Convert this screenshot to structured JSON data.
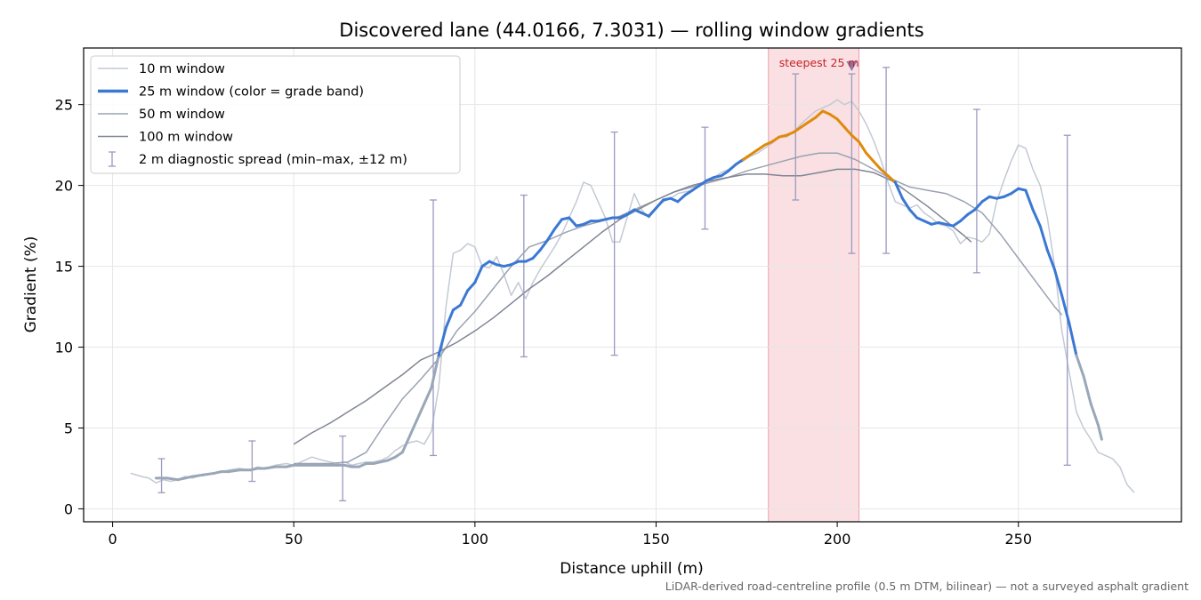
{
  "chart_data": {
    "type": "line",
    "title": "Discovered lane (44.0166, 7.3031) — rolling window gradients",
    "xlabel": "Distance uphill (m)",
    "ylabel": "Gradient (%)",
    "xlim": [
      -8,
      295
    ],
    "ylim": [
      -0.8,
      28.5
    ],
    "xticks": [
      0,
      50,
      100,
      150,
      200,
      250
    ],
    "yticks": [
      0,
      5,
      10,
      15,
      20,
      25
    ],
    "grid": true,
    "legend_position": "top-left",
    "footnote": "LiDAR-derived road-centreline profile (0.5 m DTM, bilinear) — not a surveyed asphalt gradient",
    "highlight": {
      "x0": 181,
      "x1": 206,
      "color": "#f5c6cb",
      "label": "steepest 25 m",
      "marker_x": 204,
      "marker_y": 27.4
    },
    "grade_band_colors": {
      "low": "#9aa7b8",
      "mid": "#3a78d4",
      "high": "#e08a0c"
    },
    "series": [
      {
        "name": "10 m window",
        "color": "#c3c9d4",
        "width": 1.5,
        "x": [
          5,
          8,
          10,
          12,
          14,
          16,
          18,
          20,
          22,
          25,
          28,
          30,
          32,
          35,
          38,
          40,
          42,
          45,
          48,
          50,
          52,
          55,
          58,
          60,
          62,
          64,
          66,
          68,
          70,
          72,
          74,
          76,
          78,
          80,
          82,
          84,
          86,
          88,
          90,
          92,
          94,
          96,
          98,
          100,
          102,
          104,
          106,
          108,
          110,
          112,
          114,
          116,
          118,
          120,
          122,
          124,
          126,
          128,
          130,
          132,
          134,
          136,
          138,
          140,
          142,
          144,
          146,
          148,
          150,
          152,
          154,
          156,
          158,
          160,
          162,
          164,
          166,
          168,
          170,
          172,
          174,
          176,
          178,
          180,
          182,
          184,
          186,
          188,
          190,
          192,
          194,
          196,
          198,
          200,
          202,
          204,
          206,
          208,
          210,
          212,
          214,
          216,
          218,
          220,
          222,
          224,
          226,
          228,
          230,
          232,
          234,
          236,
          238,
          240,
          242,
          244,
          246,
          248,
          250,
          252,
          254,
          256,
          258,
          260,
          262,
          264,
          266,
          268,
          270,
          272,
          274,
          276,
          278,
          280,
          282
        ],
        "y": [
          2.2,
          2.0,
          1.9,
          1.6,
          1.8,
          1.7,
          1.8,
          2.0,
          1.9,
          2.1,
          2.2,
          2.3,
          2.4,
          2.5,
          2.4,
          2.6,
          2.5,
          2.7,
          2.8,
          2.7,
          2.9,
          3.2,
          3.0,
          2.9,
          2.8,
          2.9,
          2.7,
          2.8,
          2.9,
          2.9,
          3.0,
          3.2,
          3.6,
          3.9,
          4.1,
          4.2,
          4.0,
          4.8,
          7.5,
          12.5,
          15.8,
          16.0,
          16.4,
          16.2,
          15.0,
          14.9,
          15.6,
          14.5,
          13.2,
          14.0,
          13.0,
          14.0,
          14.8,
          15.5,
          16.2,
          17.0,
          18.0,
          19.0,
          20.2,
          20.0,
          19.0,
          18.0,
          16.5,
          16.5,
          18.0,
          19.5,
          18.5,
          18.0,
          18.6,
          19.0,
          19.2,
          19.5,
          19.6,
          19.7,
          20.1,
          20.3,
          20.5,
          20.8,
          21.0,
          21.3,
          21.5,
          21.8,
          22.0,
          22.3,
          22.6,
          23.0,
          23.0,
          23.3,
          23.8,
          24.2,
          24.6,
          24.8,
          25.0,
          25.3,
          25.0,
          25.2,
          24.6,
          23.8,
          22.8,
          21.6,
          20.2,
          19.0,
          18.8,
          18.6,
          18.8,
          18.3,
          18.0,
          17.6,
          17.5,
          17.2,
          16.4,
          16.8,
          16.7,
          16.5,
          17.0,
          19.0,
          20.3,
          21.5,
          22.5,
          22.3,
          21.0,
          20.0,
          18.0,
          15.0,
          11.0,
          8.5,
          6.0,
          5.0,
          4.3,
          3.5,
          3.3,
          3.1,
          2.6,
          1.5,
          1.0
        ]
      },
      {
        "name": "25 m window (color = grade band)",
        "color": "#3a78d4",
        "width": 3,
        "x": [
          12,
          15,
          18,
          20,
          22,
          25,
          28,
          30,
          32,
          35,
          38,
          40,
          42,
          45,
          48,
          50,
          52,
          55,
          58,
          60,
          62,
          64,
          66,
          68,
          70,
          72,
          74,
          76,
          78,
          80,
          82,
          84,
          86,
          88,
          90,
          92,
          94,
          96,
          98,
          100,
          101,
          102,
          104,
          106,
          108,
          110,
          112,
          114,
          116,
          118,
          120,
          122,
          124,
          126,
          128,
          130,
          132,
          134,
          136,
          138,
          140,
          142,
          144,
          146,
          148,
          150,
          152,
          154,
          156,
          158,
          160,
          162,
          164,
          166,
          168,
          170,
          172,
          174,
          176,
          178,
          180,
          182,
          184,
          186,
          188,
          190,
          192,
          194,
          196,
          198,
          200,
          202,
          204,
          206,
          208,
          210,
          212,
          214,
          216,
          218,
          220,
          222,
          224,
          226,
          228,
          230,
          232,
          234,
          236,
          238,
          240,
          242,
          244,
          246,
          248,
          250,
          252,
          254,
          256,
          258,
          260,
          262,
          264,
          265,
          266,
          268,
          270,
          272,
          273
        ],
        "y": [
          1.9,
          1.9,
          1.8,
          1.9,
          2.0,
          2.1,
          2.2,
          2.3,
          2.3,
          2.4,
          2.4,
          2.5,
          2.5,
          2.6,
          2.6,
          2.7,
          2.7,
          2.7,
          2.7,
          2.7,
          2.7,
          2.7,
          2.6,
          2.6,
          2.8,
          2.8,
          2.9,
          3.0,
          3.2,
          3.5,
          4.5,
          5.5,
          6.5,
          7.5,
          9.5,
          11.2,
          12.3,
          12.6,
          13.5,
          14.0,
          14.5,
          15.0,
          15.3,
          15.1,
          15.0,
          15.1,
          15.3,
          15.3,
          15.5,
          16.0,
          16.6,
          17.3,
          17.9,
          18.0,
          17.5,
          17.6,
          17.8,
          17.8,
          17.9,
          18.0,
          18.0,
          18.2,
          18.5,
          18.3,
          18.1,
          18.6,
          19.1,
          19.2,
          19.0,
          19.4,
          19.7,
          20.0,
          20.3,
          20.5,
          20.6,
          20.9,
          21.3,
          21.6,
          21.9,
          22.2,
          22.5,
          22.7,
          23.0,
          23.1,
          23.3,
          23.6,
          23.9,
          24.2,
          24.6,
          24.4,
          24.1,
          23.6,
          23.1,
          22.7,
          22.0,
          21.5,
          21.0,
          20.6,
          20.2,
          19.2,
          18.5,
          18.0,
          17.8,
          17.6,
          17.7,
          17.6,
          17.5,
          17.8,
          18.2,
          18.5,
          19.0,
          19.3,
          19.2,
          19.3,
          19.5,
          19.8,
          19.7,
          18.5,
          17.5,
          16.0,
          14.8,
          13.2,
          11.5,
          10.5,
          9.5,
          8.2,
          6.5,
          5.2,
          4.3
        ]
      },
      {
        "name": "50 m window",
        "color": "#9aa2b2",
        "width": 1.5,
        "x": [
          50,
          55,
          60,
          65,
          70,
          75,
          80,
          85,
          90,
          95,
          100,
          105,
          110,
          115,
          120,
          125,
          130,
          135,
          140,
          145,
          150,
          155,
          160,
          165,
          170,
          175,
          180,
          185,
          190,
          195,
          200,
          205,
          210,
          215,
          220,
          225,
          230,
          235,
          240,
          245,
          250,
          255,
          260,
          262
        ],
        "y": [
          2.8,
          2.8,
          2.8,
          2.9,
          3.5,
          5.2,
          6.8,
          8.0,
          9.3,
          11.0,
          12.2,
          13.6,
          15.0,
          16.2,
          16.6,
          17.1,
          17.5,
          17.8,
          18.1,
          18.6,
          19.1,
          19.6,
          19.9,
          20.2,
          20.5,
          20.9,
          21.2,
          21.5,
          21.8,
          22.0,
          22.0,
          21.6,
          21.0,
          20.4,
          19.9,
          19.7,
          19.5,
          19.0,
          18.3,
          17.0,
          15.5,
          14.0,
          12.5,
          12.0
        ]
      },
      {
        "name": "100 m window",
        "color": "#7f8594",
        "width": 1.5,
        "x": [
          50,
          55,
          60,
          65,
          70,
          75,
          80,
          85,
          90,
          95,
          100,
          105,
          110,
          115,
          120,
          125,
          130,
          135,
          140,
          145,
          150,
          155,
          160,
          165,
          170,
          175,
          180,
          185,
          190,
          195,
          200,
          205,
          210,
          215,
          220,
          225,
          230,
          235,
          237
        ],
        "y": [
          4.0,
          4.7,
          5.3,
          6.0,
          6.7,
          7.5,
          8.3,
          9.2,
          9.7,
          10.3,
          11.0,
          11.8,
          12.7,
          13.6,
          14.4,
          15.3,
          16.2,
          17.1,
          17.9,
          18.5,
          19.1,
          19.6,
          20.0,
          20.3,
          20.5,
          20.7,
          20.7,
          20.6,
          20.6,
          20.8,
          21.0,
          21.0,
          20.8,
          20.3,
          19.5,
          18.7,
          17.8,
          16.9,
          16.5
        ]
      }
    ],
    "error_bars": {
      "name": "2 m diagnostic spread (min–max, ±12 m)",
      "color": "#9a9ac0",
      "x": [
        13.5,
        38.5,
        63.5,
        88.5,
        113.5,
        138.5,
        163.5,
        188.5,
        204,
        213.5,
        238.5,
        263.5
      ],
      "min": [
        1.0,
        1.7,
        0.5,
        3.3,
        9.4,
        9.5,
        17.3,
        19.1,
        15.8,
        15.8,
        14.6,
        2.7
      ],
      "max": [
        3.1,
        4.2,
        4.5,
        19.1,
        19.4,
        23.3,
        23.6,
        26.9,
        26.9,
        27.3,
        24.7,
        23.1
      ]
    }
  }
}
